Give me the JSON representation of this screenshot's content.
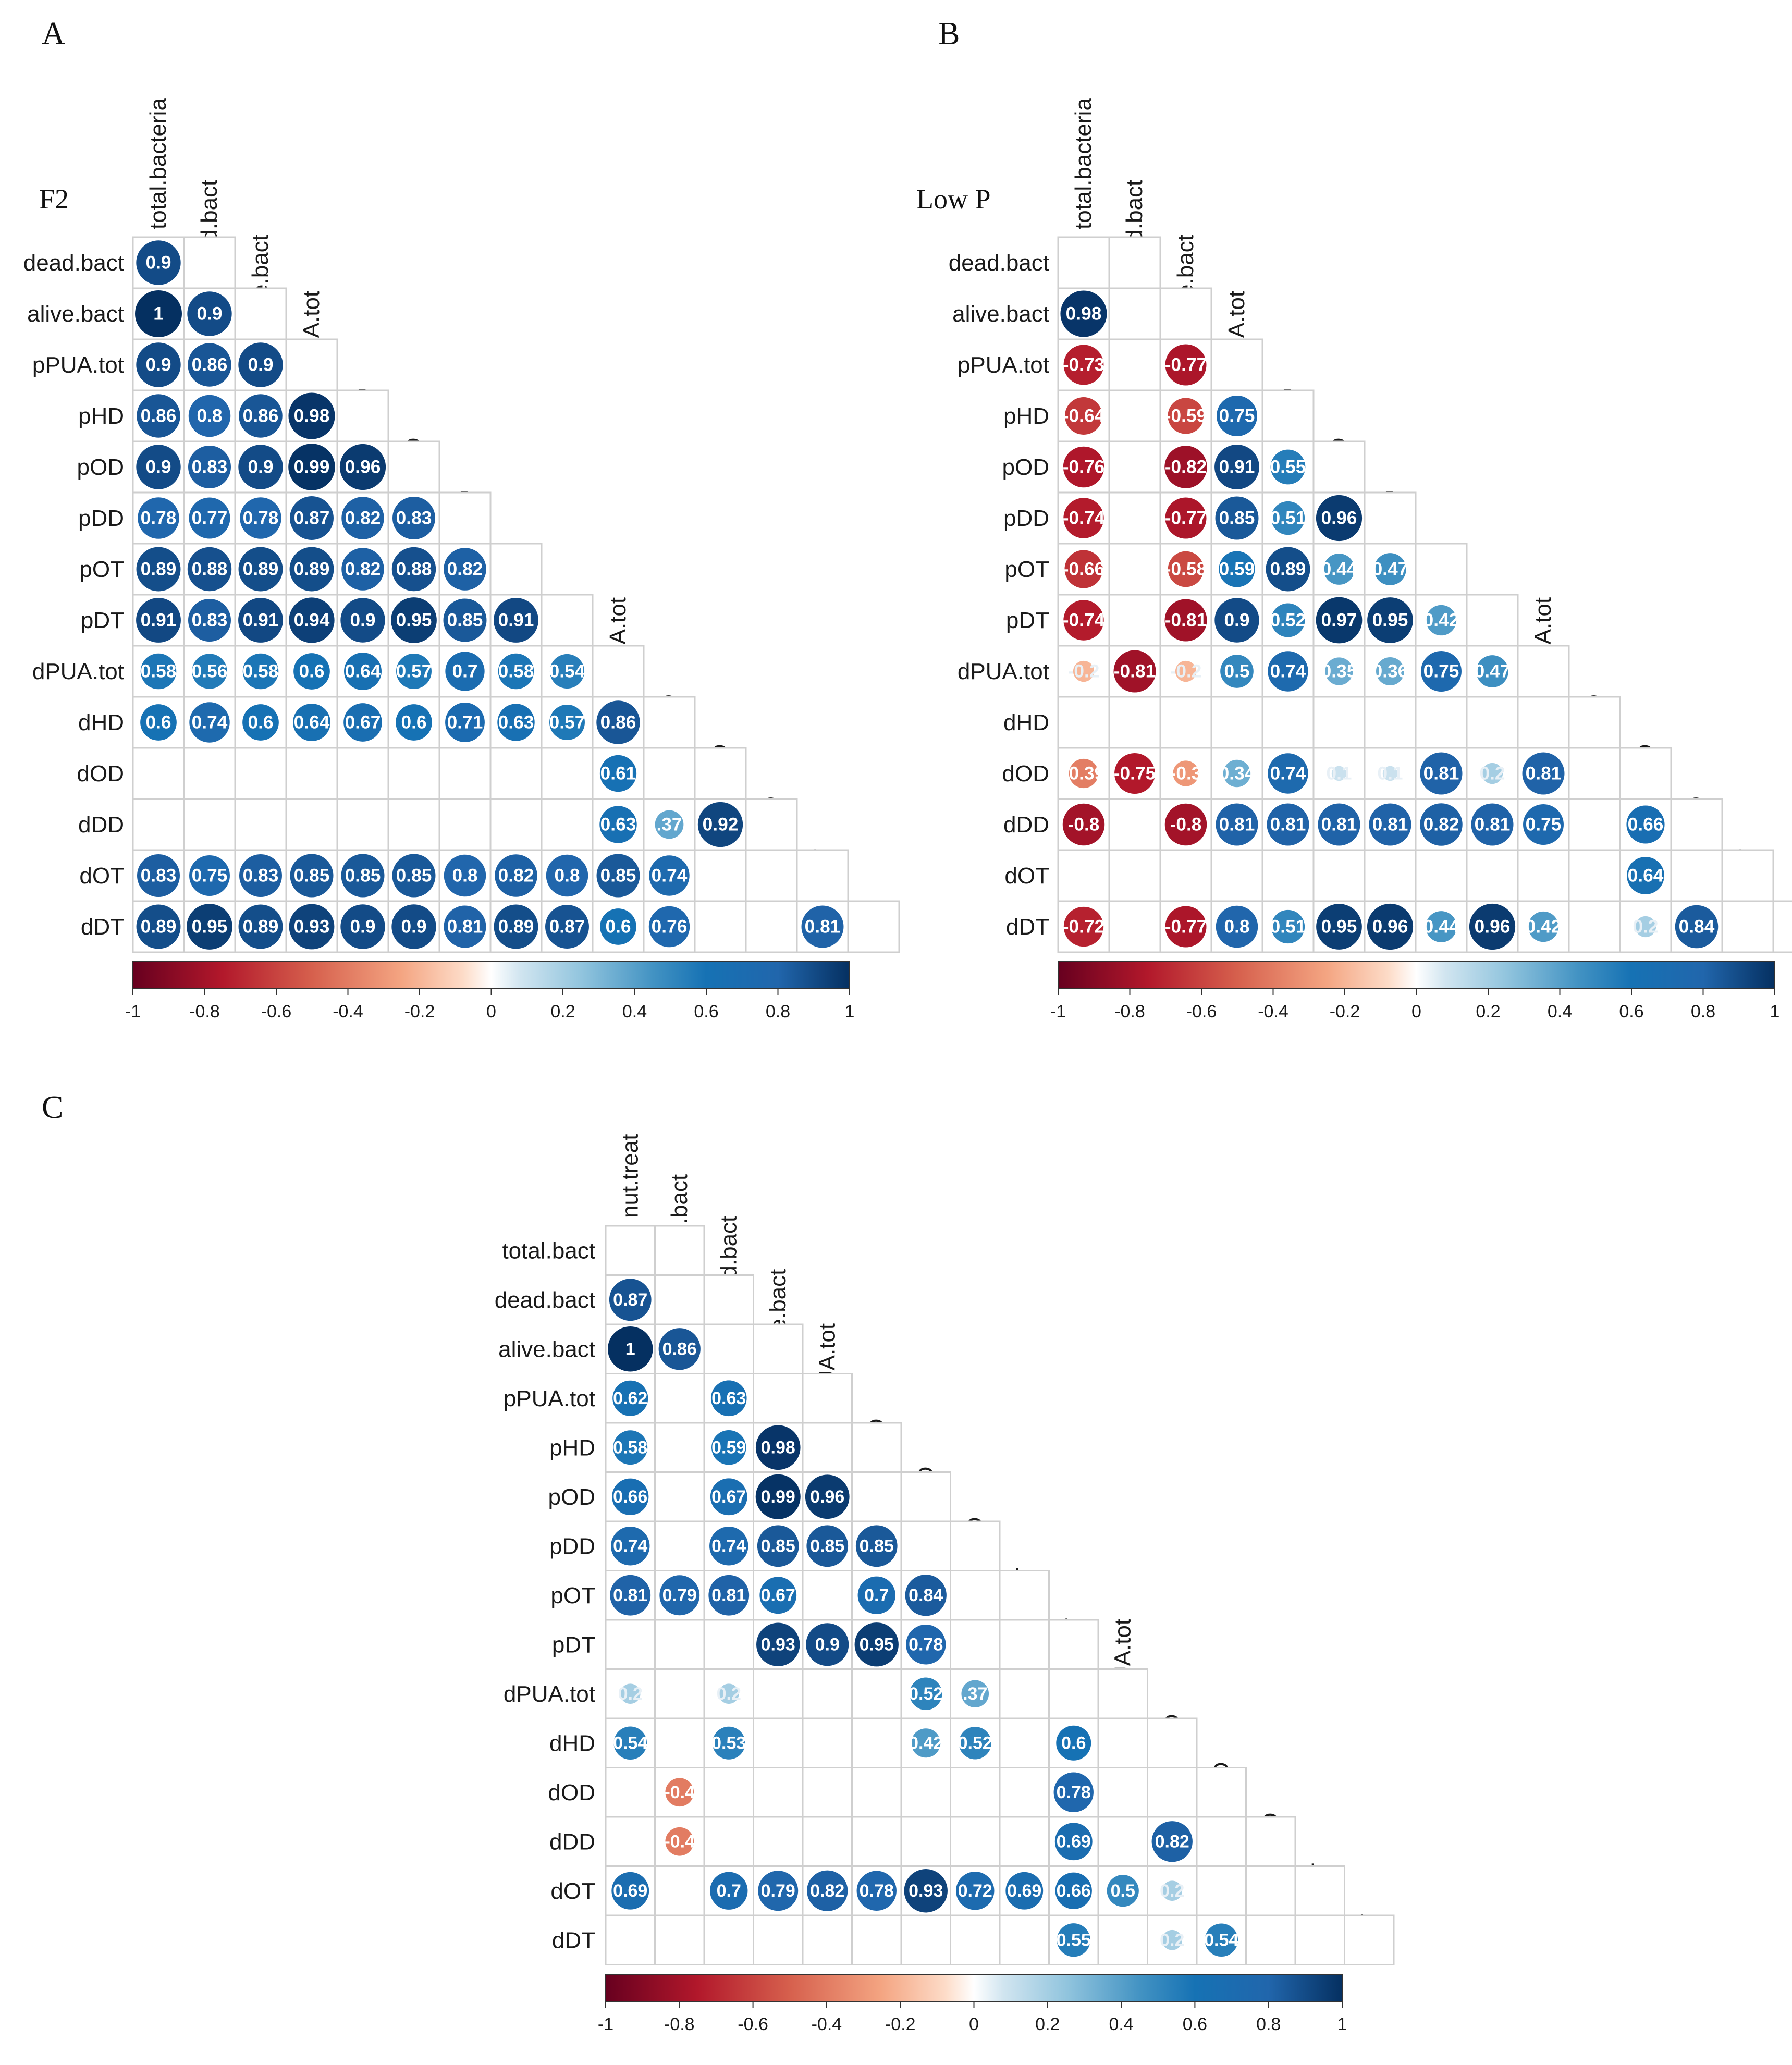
{
  "colorbar_ticks": [
    "-1",
    "-0.8",
    "-0.6",
    "-0.4",
    "-0.2",
    "0",
    "0.2",
    "0.4",
    "0.6",
    "0.8",
    "1"
  ],
  "colors": {
    "negative": "#67001f",
    "mid_negative": "#d6604d",
    "zero": "#ffffff",
    "mid_positive": "#4393c3",
    "positive": "#053061"
  },
  "chart_data": [
    {
      "type": "heatmap",
      "panel_label": "A",
      "title": "F2",
      "vars": [
        "total.bacteria",
        "dead.bact",
        "alive.bact",
        "pPUA.tot",
        "pHD",
        "pOD",
        "pDD",
        "pOT",
        "pDT",
        "dPUA.tot",
        "dHD",
        "dOD",
        "dDD",
        "dOT",
        "dDT"
      ],
      "rows": [
        [
          0.9
        ],
        [
          1,
          0.9
        ],
        [
          0.9,
          0.86,
          0.9
        ],
        [
          0.86,
          0.8,
          0.86,
          0.98
        ],
        [
          0.9,
          0.83,
          0.9,
          0.99,
          0.96
        ],
        [
          0.78,
          0.77,
          0.78,
          0.87,
          0.82,
          0.83
        ],
        [
          0.89,
          0.88,
          0.89,
          0.89,
          0.82,
          0.88,
          0.82
        ],
        [
          0.91,
          0.83,
          0.91,
          0.94,
          0.9,
          0.95,
          0.85,
          0.91
        ],
        [
          0.58,
          0.56,
          0.58,
          0.6,
          0.64,
          0.57,
          0.7,
          0.58,
          0.54
        ],
        [
          0.6,
          0.74,
          0.6,
          0.64,
          0.67,
          0.6,
          0.71,
          0.63,
          0.57,
          0.86
        ],
        [
          null,
          null,
          null,
          null,
          null,
          null,
          null,
          null,
          null,
          0.61,
          null
        ],
        [
          null,
          null,
          null,
          null,
          null,
          null,
          null,
          null,
          null,
          0.63,
          0.37,
          0.92
        ],
        [
          0.83,
          0.75,
          0.83,
          0.85,
          0.85,
          0.85,
          0.8,
          0.82,
          0.8,
          0.85,
          0.74,
          null,
          null
        ],
        [
          0.89,
          0.95,
          0.89,
          0.93,
          0.9,
          0.9,
          0.81,
          0.89,
          0.87,
          0.6,
          0.76,
          null,
          null,
          0.81
        ]
      ],
      "value_labels": [
        [
          "0.9"
        ],
        [
          "1",
          "0.9"
        ],
        [
          "0.9",
          "0.86",
          "0.9"
        ],
        [
          "0.86",
          "0.8",
          "0.86",
          "0.98"
        ],
        [
          "0.9",
          "0.83",
          "0.9",
          "0.99",
          "0.96"
        ],
        [
          "0.78",
          "0.77",
          "0.78",
          "0.87",
          "0.82",
          "0.83"
        ],
        [
          "0.89",
          "0.88",
          "0.89",
          "0.89",
          "0.82",
          "0.88",
          "0.82"
        ],
        [
          "0.91",
          "0.83",
          "0.91",
          "0.94",
          "0.9",
          "0.95",
          "0.85",
          "0.91"
        ],
        [
          "0.58",
          "0.56",
          "0.58",
          "0.6",
          "0.64",
          "0.57",
          "0.7",
          "0.58",
          "0.54"
        ],
        [
          "0.6",
          "0.74",
          "0.6",
          "0.64",
          "0.67",
          "0.6",
          "0.71",
          "0.63",
          "0.57",
          "0.86"
        ],
        [
          null,
          null,
          null,
          null,
          null,
          null,
          null,
          null,
          null,
          "0.61",
          null
        ],
        [
          null,
          null,
          null,
          null,
          null,
          null,
          null,
          null,
          null,
          "0.63",
          ".37",
          "0.92"
        ],
        [
          "0.83",
          "0.75",
          "0.83",
          "0.85",
          "0.85",
          "0.85",
          "0.8",
          "0.82",
          "0.8",
          "0.85",
          "0.74",
          null,
          null
        ],
        [
          "0.89",
          "0.95",
          "0.89",
          "0.93",
          "0.9",
          "0.9",
          "0.81",
          "0.89",
          "0.87",
          "0.6",
          "0.76",
          null,
          null,
          "0.81"
        ]
      ],
      "scale": [
        -1,
        1
      ]
    },
    {
      "type": "heatmap",
      "panel_label": "B",
      "title": "Low P",
      "vars": [
        "total.bacteria",
        "dead.bact",
        "alive.bact",
        "pPUA.tot",
        "pHD",
        "pOD",
        "pDD",
        "pOT",
        "pDT",
        "dPUA.tot",
        "dHD",
        "dOD",
        "dDD",
        "dOT",
        "dDT"
      ],
      "rows": [
        [
          null
        ],
        [
          0.98,
          null
        ],
        [
          -0.73,
          null,
          -0.77
        ],
        [
          -0.64,
          null,
          -0.59,
          0.75
        ],
        [
          -0.76,
          null,
          -0.82,
          0.91,
          0.55
        ],
        [
          -0.74,
          null,
          -0.77,
          0.85,
          0.51,
          0.96
        ],
        [
          -0.66,
          null,
          -0.58,
          0.59,
          0.89,
          0.44,
          0.47
        ],
        [
          -0.74,
          null,
          -0.81,
          0.9,
          0.52,
          0.97,
          0.95,
          0.42
        ],
        [
          -0.2,
          -0.81,
          -0.2,
          0.5,
          0.74,
          0.35,
          0.36,
          0.75,
          0.47
        ],
        [
          null,
          null,
          null,
          null,
          null,
          null,
          null,
          null,
          null,
          null
        ],
        [
          -0.39,
          -0.75,
          -0.3,
          0.34,
          0.74,
          0.1,
          0.1,
          0.81,
          0.2,
          0.81,
          null
        ],
        [
          -0.8,
          null,
          -0.8,
          0.81,
          0.81,
          0.81,
          0.81,
          0.82,
          0.81,
          0.75,
          null,
          0.66
        ],
        [
          null,
          null,
          null,
          null,
          null,
          null,
          null,
          null,
          null,
          null,
          null,
          0.64,
          null
        ],
        [
          -0.72,
          null,
          -0.77,
          0.8,
          0.51,
          0.95,
          0.96,
          0.44,
          0.96,
          0.42,
          null,
          0.2,
          0.84,
          null
        ]
      ],
      "value_labels": [
        [
          null
        ],
        [
          "0.98",
          null
        ],
        [
          "-0.73",
          null,
          "-0.77"
        ],
        [
          "-0.64",
          null,
          "-0.59",
          "0.75"
        ],
        [
          "-0.76",
          null,
          "-0.82",
          "0.91",
          "0.55"
        ],
        [
          "-0.74",
          null,
          "-0.77",
          "0.85",
          "0.51",
          "0.96"
        ],
        [
          "-0.66",
          null,
          "-0.58",
          "0.59",
          "0.89",
          "0.44",
          "0.47"
        ],
        [
          "-0.74",
          null,
          "-0.81",
          "0.9",
          "0.52",
          "0.97",
          "0.95",
          "0.42"
        ],
        [
          "-0.2",
          "-0.81",
          "-0.2",
          "0.5",
          "0.74",
          "0.35",
          "0.36",
          "0.75",
          "0.47"
        ],
        [
          null,
          null,
          null,
          null,
          null,
          null,
          null,
          null,
          null,
          null
        ],
        [
          "-0.39",
          "-0.75",
          "-0.3",
          "0.34",
          "0.74",
          "0.1",
          "0.1",
          "0.81",
          "0.2",
          "0.81",
          null
        ],
        [
          "-0.8",
          null,
          "-0.8",
          "0.81",
          "0.81",
          "0.81",
          "0.81",
          "0.82",
          "0.81",
          "0.75",
          null,
          "0.66"
        ],
        [
          null,
          null,
          null,
          null,
          null,
          null,
          null,
          null,
          null,
          null,
          null,
          "0.64",
          null
        ],
        [
          "-0.72",
          null,
          "-0.77",
          "0.8",
          "0.51",
          "0.95",
          "0.96",
          "0.44",
          "0.96",
          "0.42",
          null,
          "0.2",
          "0.84",
          null
        ]
      ],
      "scale": [
        -1,
        1
      ]
    },
    {
      "type": "heatmap",
      "panel_label": "C",
      "title": "",
      "vars": [
        "nut.treat",
        "total.bact",
        "dead.bact",
        "alive.bact",
        "pPUA.tot",
        "pHD",
        "pOD",
        "pDD",
        "pOT",
        "pDT",
        "dPUA.tot",
        "dHD",
        "dOD",
        "dDD",
        "dOT",
        "dDT"
      ],
      "rows": [
        [
          null
        ],
        [
          0.87,
          null
        ],
        [
          1,
          0.86,
          null
        ],
        [
          0.62,
          null,
          0.63,
          null
        ],
        [
          0.58,
          null,
          0.59,
          0.98,
          null
        ],
        [
          0.66,
          null,
          0.67,
          0.99,
          0.96,
          null
        ],
        [
          0.74,
          null,
          0.74,
          0.85,
          0.85,
          0.85,
          null
        ],
        [
          0.81,
          0.79,
          0.81,
          0.67,
          null,
          0.7,
          0.84,
          null
        ],
        [
          null,
          null,
          null,
          0.93,
          0.9,
          0.95,
          0.78,
          null,
          null
        ],
        [
          0.2,
          null,
          0.2,
          null,
          null,
          null,
          0.52,
          0.37,
          null,
          null
        ],
        [
          0.54,
          null,
          0.53,
          null,
          null,
          null,
          0.42,
          0.52,
          null,
          0.6,
          null
        ],
        [
          null,
          -0.4,
          null,
          null,
          null,
          null,
          null,
          null,
          null,
          0.78,
          null,
          null
        ],
        [
          null,
          -0.4,
          null,
          null,
          null,
          null,
          null,
          null,
          null,
          0.69,
          null,
          0.82,
          null
        ],
        [
          0.69,
          null,
          0.7,
          0.79,
          0.82,
          0.78,
          0.93,
          0.72,
          0.69,
          0.66,
          0.5,
          0.2,
          null,
          null
        ],
        [
          null,
          null,
          null,
          null,
          null,
          null,
          null,
          null,
          null,
          0.55,
          null,
          0.2,
          0.54,
          null,
          null
        ]
      ],
      "value_labels": [
        [
          null
        ],
        [
          "0.87",
          null
        ],
        [
          "1",
          "0.86",
          null
        ],
        [
          "0.62",
          null,
          "0.63",
          null
        ],
        [
          "0.58",
          null,
          "0.59",
          "0.98",
          null
        ],
        [
          "0.66",
          null,
          "0.67",
          "0.99",
          "0.96",
          null
        ],
        [
          "0.74",
          null,
          "0.74",
          "0.85",
          "0.85",
          "0.85",
          null
        ],
        [
          "0.81",
          "0.79",
          "0.81",
          "0.67",
          null,
          "0.7",
          "0.84",
          null
        ],
        [
          null,
          null,
          null,
          "0.93",
          "0.9",
          "0.95",
          "0.78",
          null,
          null
        ],
        [
          "0.2",
          null,
          "0.2",
          null,
          null,
          null,
          "0.52",
          ".37",
          null,
          null
        ],
        [
          "0.54",
          null,
          "0.53",
          null,
          null,
          null,
          "0.42",
          "0.52",
          null,
          "0.6",
          null
        ],
        [
          null,
          "-0.4",
          null,
          null,
          null,
          null,
          null,
          null,
          null,
          "0.78",
          null,
          null
        ],
        [
          null,
          "-0.4",
          null,
          null,
          null,
          null,
          null,
          null,
          null,
          "0.69",
          null,
          "0.82",
          null
        ],
        [
          "0.69",
          null,
          "0.7",
          "0.79",
          "0.82",
          "0.78",
          "0.93",
          "0.72",
          "0.69",
          "0.66",
          "0.5",
          "0.2",
          null,
          null
        ],
        [
          null,
          null,
          null,
          null,
          null,
          null,
          null,
          null,
          null,
          "0.55",
          null,
          "0.2",
          "0.54",
          null,
          null
        ]
      ],
      "scale": [
        -1,
        1
      ]
    }
  ]
}
